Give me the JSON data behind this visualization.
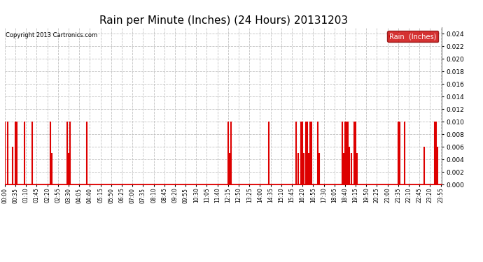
{
  "title": "Rain per Minute (Inches) (24 Hours) 20131203",
  "copyright": "Copyright 2013 Cartronics.com",
  "legend_label": "Rain  (Inches)",
  "legend_bg": "#cc0000",
  "legend_text_color": "#ffffff",
  "y_min": 0.0,
  "y_max": 0.025,
  "y_ticks": [
    0.0,
    0.002,
    0.004,
    0.006,
    0.008,
    0.01,
    0.012,
    0.014,
    0.016,
    0.018,
    0.02,
    0.022,
    0.024
  ],
  "background_color": "#ffffff",
  "grid_color": "#bbbbbb",
  "line_color": "#dd0000",
  "title_fontsize": 11,
  "rain_events": [
    {
      "minute": 0,
      "value": 0.01
    },
    {
      "minute": 10,
      "value": 0.01
    },
    {
      "minute": 25,
      "value": 0.006
    },
    {
      "minute": 35,
      "value": 0.01
    },
    {
      "minute": 40,
      "value": 0.01
    },
    {
      "minute": 65,
      "value": 0.01
    },
    {
      "minute": 90,
      "value": 0.01
    },
    {
      "minute": 150,
      "value": 0.01
    },
    {
      "minute": 155,
      "value": 0.005
    },
    {
      "minute": 205,
      "value": 0.01
    },
    {
      "minute": 210,
      "value": 0.005
    },
    {
      "minute": 215,
      "value": 0.01
    },
    {
      "minute": 270,
      "value": 0.01
    },
    {
      "minute": 735,
      "value": 0.01
    },
    {
      "minute": 740,
      "value": 0.005
    },
    {
      "minute": 745,
      "value": 0.01
    },
    {
      "minute": 870,
      "value": 0.01
    },
    {
      "minute": 960,
      "value": 0.01
    },
    {
      "minute": 965,
      "value": 0.005
    },
    {
      "minute": 975,
      "value": 0.01
    },
    {
      "minute": 980,
      "value": 0.01
    },
    {
      "minute": 985,
      "value": 0.005
    },
    {
      "minute": 990,
      "value": 0.01
    },
    {
      "minute": 995,
      "value": 0.01
    },
    {
      "minute": 1000,
      "value": 0.005
    },
    {
      "minute": 1005,
      "value": 0.01
    },
    {
      "minute": 1010,
      "value": 0.01
    },
    {
      "minute": 1030,
      "value": 0.01
    },
    {
      "minute": 1035,
      "value": 0.005
    },
    {
      "minute": 1110,
      "value": 0.01
    },
    {
      "minute": 1115,
      "value": 0.005
    },
    {
      "minute": 1120,
      "value": 0.01
    },
    {
      "minute": 1125,
      "value": 0.01
    },
    {
      "minute": 1130,
      "value": 0.01
    },
    {
      "minute": 1135,
      "value": 0.006
    },
    {
      "minute": 1140,
      "value": 0.005
    },
    {
      "minute": 1150,
      "value": 0.01
    },
    {
      "minute": 1155,
      "value": 0.01
    },
    {
      "minute": 1160,
      "value": 0.005
    },
    {
      "minute": 1295,
      "value": 0.01
    },
    {
      "minute": 1300,
      "value": 0.01
    },
    {
      "minute": 1315,
      "value": 0.01
    },
    {
      "minute": 1380,
      "value": 0.006
    },
    {
      "minute": 1415,
      "value": 0.01
    },
    {
      "minute": 1420,
      "value": 0.01
    },
    {
      "minute": 1425,
      "value": 0.006
    }
  ],
  "x_tick_minutes": [
    0,
    35,
    70,
    105,
    140,
    175,
    210,
    245,
    280,
    315,
    350,
    385,
    420,
    455,
    490,
    525,
    560,
    595,
    630,
    665,
    700,
    735,
    770,
    805,
    840,
    875,
    910,
    945,
    980,
    1015,
    1050,
    1085,
    1120,
    1155,
    1190,
    1225,
    1260,
    1295,
    1330,
    1365,
    1400,
    1435
  ],
  "total_minutes": 1440
}
